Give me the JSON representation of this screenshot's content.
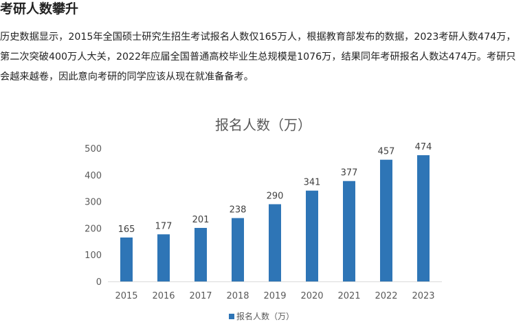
{
  "article": {
    "heading": "考研人数攀升",
    "paragraph": "历史数据显示，2015年全国硕士研究生招生考试报名人数仅165万人，根据教育部发布的数据，2023考研人数474万，第二次突破400万人大关，2022年应届全国普通高校毕业生总规模是1076万，结果同年考研报名人数达474万。考研只会越来越卷，因此意向考研的同学应该从现在就准备备考。"
  },
  "chart_data": {
    "type": "bar",
    "title": "报名人数（万）",
    "categories": [
      "2015",
      "2016",
      "2017",
      "2018",
      "2019",
      "2020",
      "2021",
      "2022",
      "2023"
    ],
    "series": [
      {
        "name": "报名人数（万）",
        "values": [
          165,
          177,
          201,
          238,
          290,
          341,
          377,
          457,
          474
        ]
      }
    ],
    "ylim": [
      0,
      500
    ],
    "yticks": [
      0,
      100,
      200,
      300,
      400,
      500
    ],
    "grid": false,
    "legend": "bottom",
    "data_labels": true,
    "bar_color": "#2e75b6"
  }
}
